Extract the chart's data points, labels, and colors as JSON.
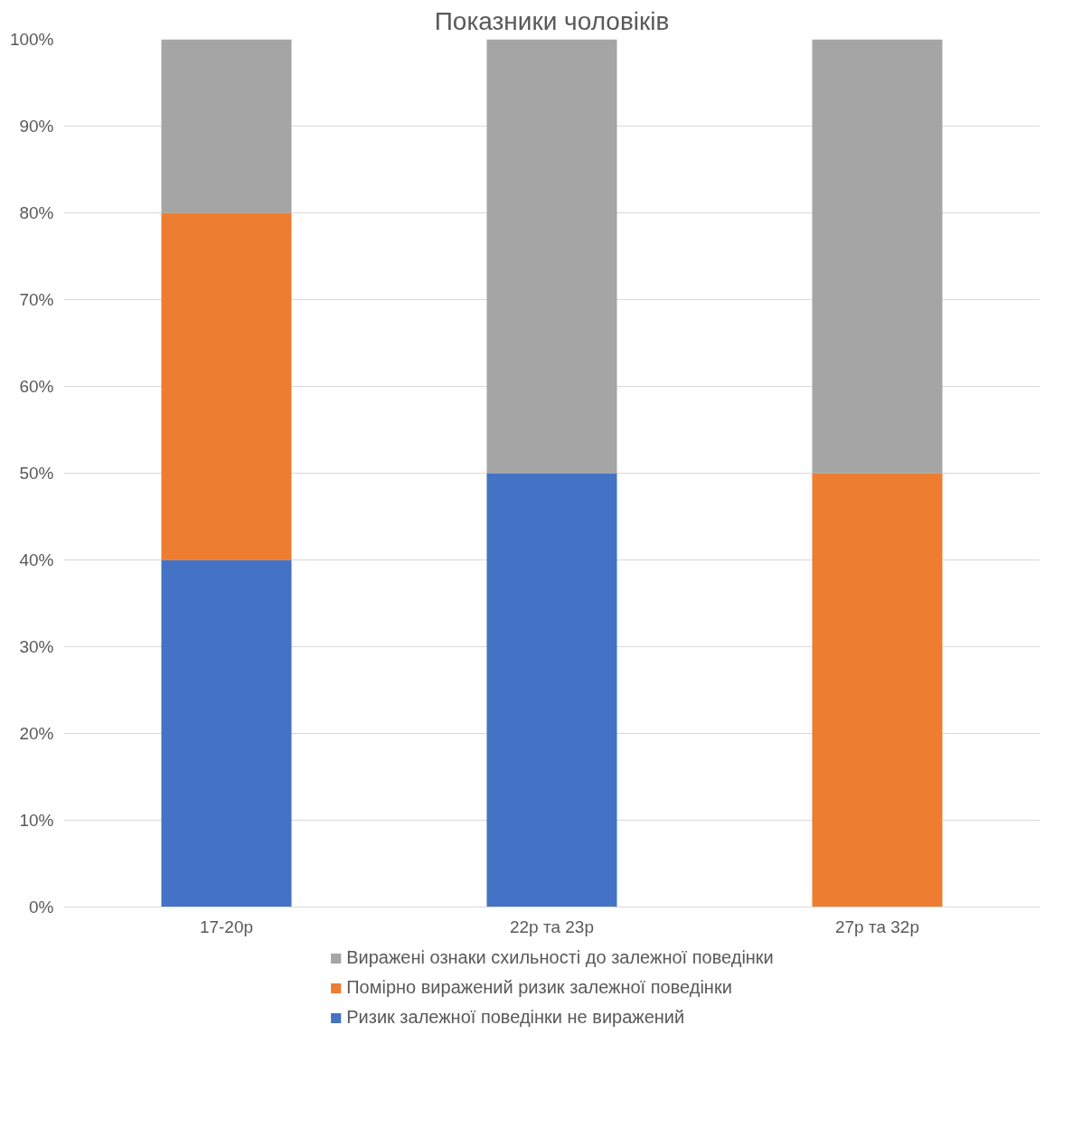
{
  "chart_data": {
    "type": "bar",
    "title": "Показники чоловіків",
    "stacked": true,
    "categories": [
      "17-20р",
      "22р та 23р",
      "27р та 32р"
    ],
    "series": [
      {
        "name": "Ризик залежної поведінки не виражений",
        "color": "#4472c4",
        "values": [
          40,
          50,
          0
        ]
      },
      {
        "name": "Помірно виражений ризик залежної поведінки",
        "color": "#ed7d31",
        "values": [
          40,
          0,
          50
        ]
      },
      {
        "name": "Виражені ознаки схильності до залежної поведінки",
        "color": "#a5a5a5",
        "values": [
          20,
          50,
          50
        ]
      }
    ],
    "ylim": [
      0,
      100
    ],
    "yticks": [
      {
        "value": 0,
        "label": "0%"
      },
      {
        "value": 10,
        "label": "10%"
      },
      {
        "value": 20,
        "label": "20%"
      },
      {
        "value": 30,
        "label": "30%"
      },
      {
        "value": 40,
        "label": "40%"
      },
      {
        "value": 50,
        "label": "50%"
      },
      {
        "value": 60,
        "label": "60%"
      },
      {
        "value": 70,
        "label": "70%"
      },
      {
        "value": 80,
        "label": "80%"
      },
      {
        "value": 90,
        "label": "90%"
      },
      {
        "value": 100,
        "label": "100%"
      }
    ],
    "grid": "y",
    "legend": "bottom"
  }
}
